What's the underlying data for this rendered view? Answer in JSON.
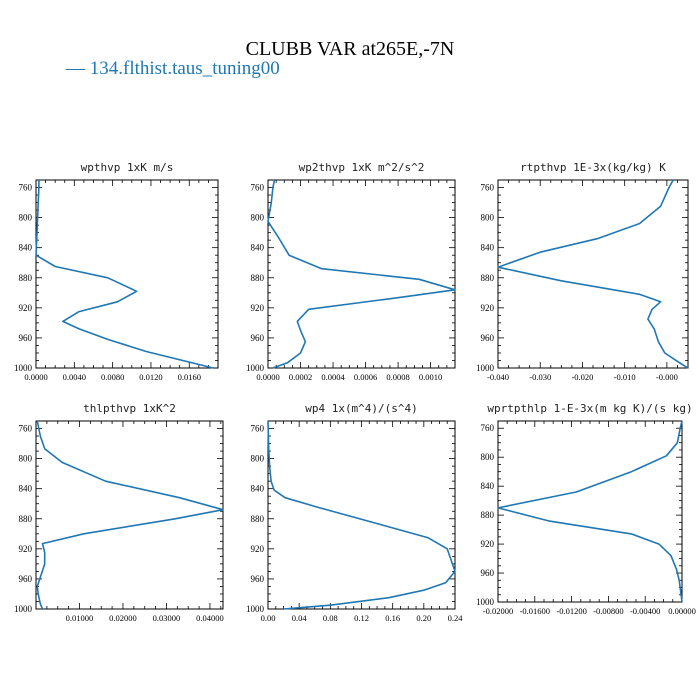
{
  "title": "CLUBB VAR at265E,-7N",
  "legend": {
    "marker": "—",
    "label": "134.flthist.taus_tuning00",
    "color": "#1f77b4"
  },
  "chart_data": [
    {
      "type": "line",
      "title": "wpthvp  1xK m/s",
      "ylim": [
        1000,
        750
      ],
      "yticks": [
        760,
        800,
        840,
        880,
        920,
        960,
        1000
      ],
      "xlim": [
        0,
        0.019
      ],
      "xticks": [
        0,
        0.004,
        0.008,
        0.012,
        0.016
      ],
      "xtick_labels": [
        "0.0000",
        "0.0040",
        "0.0080",
        "0.0120",
        "0.0160"
      ],
      "series": [
        {
          "x": [
            0.0003,
            0.0003,
            0.0002,
            0.0001,
            0.0,
            0.002,
            0.0075,
            0.0105,
            0.0085,
            0.0045,
            0.0028,
            0.0045,
            0.0075,
            0.0115,
            0.0185
          ],
          "y": [
            750,
            760,
            790,
            820,
            850,
            865,
            880,
            898,
            912,
            925,
            938,
            948,
            962,
            978,
            1000
          ]
        }
      ]
    },
    {
      "type": "line",
      "title": "wp2thvp  1xK m^2/s^2",
      "ylim": [
        1000,
        750
      ],
      "yticks": [
        760,
        800,
        840,
        880,
        920,
        960,
        1000
      ],
      "xlim": [
        0,
        0.00115
      ],
      "xticks": [
        0,
        0.0002,
        0.0004,
        0.0006,
        0.0008,
        0.001
      ],
      "xtick_labels": [
        "0.0000",
        "0.0002",
        "0.0004",
        "0.0006",
        "0.0008",
        "0.0010"
      ],
      "series": [
        {
          "x": [
            4e-05,
            3e-05,
            2e-05,
            0.0,
            6e-05,
            0.00013,
            0.00033,
            0.00093,
            0.00115,
            0.00085,
            0.00025,
            0.00018,
            0.0002,
            0.00023,
            0.0002,
            0.00012,
            3e-05
          ],
          "y": [
            750,
            760,
            780,
            805,
            825,
            850,
            868,
            882,
            896,
            905,
            922,
            938,
            950,
            965,
            980,
            993,
            1000
          ]
        }
      ]
    },
    {
      "type": "line",
      "title": "rtpthvp  1E-3x(kg/kg) K",
      "ylim": [
        1000,
        750
      ],
      "yticks": [
        760,
        800,
        840,
        880,
        920,
        960,
        1000
      ],
      "xlim": [
        -0.04,
        0.005
      ],
      "xticks": [
        -0.04,
        -0.03,
        -0.02,
        -0.01,
        0.0
      ],
      "xtick_labels": [
        "-0.040",
        "-0.030",
        "-0.020",
        "-0.010",
        "-0.000"
      ],
      "series": [
        {
          "x": [
            0.0015,
            0.0005,
            -0.0015,
            -0.0065,
            -0.0165,
            -0.03,
            -0.04,
            -0.025,
            -0.0065,
            -0.0015,
            -0.0035,
            -0.0045,
            -0.003,
            -0.002,
            -0.0005,
            0.0035,
            0.005
          ],
          "y": [
            750,
            760,
            785,
            808,
            828,
            846,
            866,
            884,
            902,
            912,
            922,
            935,
            948,
            965,
            980,
            995,
            1000
          ]
        }
      ]
    },
    {
      "type": "line",
      "title": "thlpthvp  1xK^2",
      "ylim": [
        1000,
        750
      ],
      "yticks": [
        760,
        800,
        840,
        880,
        920,
        960,
        1000
      ],
      "xlim": [
        0,
        0.043
      ],
      "xticks": [
        0.01,
        0.02,
        0.03,
        0.04
      ],
      "xtick_labels": [
        "0.01000",
        "0.02000",
        "0.03000",
        "0.04000"
      ],
      "series": [
        {
          "x": [
            0.0003,
            0.001,
            0.002,
            0.006,
            0.016,
            0.033,
            0.043,
            0.032,
            0.011,
            0.0015,
            0.002,
            0.002,
            0.001,
            0.0003,
            0.0005,
            0.001,
            0.0015
          ],
          "y": [
            750,
            770,
            787,
            805,
            830,
            852,
            868,
            880,
            900,
            913,
            925,
            940,
            958,
            970,
            980,
            993,
            1000
          ]
        }
      ]
    },
    {
      "type": "line",
      "title": "wp4  1x(m^4)/(s^4)",
      "ylim": [
        1000,
        750
      ],
      "yticks": [
        760,
        800,
        840,
        880,
        920,
        960,
        1000
      ],
      "xlim": [
        0,
        0.24
      ],
      "xticks": [
        0,
        0.04,
        0.08,
        0.12,
        0.16,
        0.2,
        0.24
      ],
      "xtick_labels": [
        "0.00",
        "0.04",
        "0.08",
        "0.12",
        "0.16",
        "0.20",
        "0.24"
      ],
      "series": [
        {
          "x": [
            0.0,
            0.001,
            0.002,
            0.004,
            0.008,
            0.022,
            0.065,
            0.135,
            0.205,
            0.23,
            0.24,
            0.228,
            0.2,
            0.155,
            0.08,
            0.02
          ],
          "y": [
            750,
            790,
            810,
            830,
            842,
            852,
            865,
            885,
            905,
            920,
            950,
            965,
            975,
            985,
            995,
            1000
          ]
        }
      ]
    },
    {
      "type": "line",
      "title": "wprtpthlp  1-E-3x(m kg K)/(s kg)",
      "ylim": [
        1000,
        750
      ],
      "yticks": [
        760,
        800,
        840,
        880,
        920,
        960,
        1000
      ],
      "xlim": [
        -0.02,
        0.0
      ],
      "xticks": [
        -0.02,
        -0.016,
        -0.012,
        -0.008,
        -0.004,
        0.0
      ],
      "xtick_labels": [
        "-0.02000",
        "-0.01600",
        "-0.01200",
        "-0.00800",
        "-0.00400",
        "0.00000"
      ],
      "series": [
        {
          "x": [
            0.0,
            -0.0002,
            -0.0005,
            -0.0017,
            -0.0055,
            -0.0115,
            -0.02,
            -0.0145,
            -0.0055,
            -0.0025,
            -0.0012,
            -0.0006,
            -0.0003,
            -0.0001,
            0.0
          ],
          "y": [
            750,
            760,
            780,
            798,
            820,
            848,
            870,
            888,
            906,
            920,
            936,
            955,
            970,
            990,
            1000
          ]
        }
      ]
    }
  ]
}
